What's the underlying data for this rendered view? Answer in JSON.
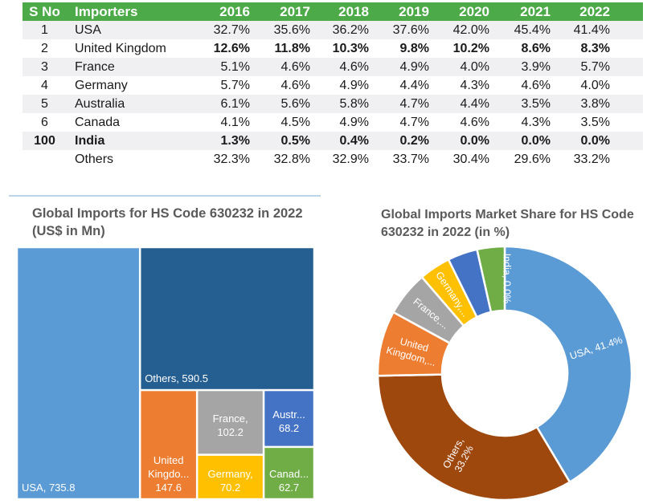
{
  "table": {
    "headers": [
      "S No",
      "Importers",
      "2016",
      "2017",
      "2018",
      "2019",
      "2020",
      "2021",
      "2022"
    ],
    "rows": [
      {
        "sno": "1",
        "name": "USA",
        "values": [
          "32.7%",
          "35.6%",
          "36.2%",
          "37.6%",
          "42.0%",
          "45.4%",
          "41.4%"
        ],
        "bold": false
      },
      {
        "sno": "2",
        "name": "United Kingdom",
        "values": [
          "12.6%",
          "11.8%",
          "10.3%",
          "9.8%",
          "10.2%",
          "8.6%",
          "8.3%"
        ],
        "bold": "values"
      },
      {
        "sno": "3",
        "name": "France",
        "values": [
          "5.1%",
          "4.6%",
          "4.6%",
          "4.9%",
          "4.0%",
          "3.9%",
          "5.7%"
        ],
        "bold": false
      },
      {
        "sno": "4",
        "name": "Germany",
        "values": [
          "5.7%",
          "4.6%",
          "4.9%",
          "4.4%",
          "4.3%",
          "4.6%",
          "4.0%"
        ],
        "bold": false
      },
      {
        "sno": "5",
        "name": "Australia",
        "values": [
          "6.1%",
          "5.6%",
          "5.8%",
          "4.7%",
          "4.4%",
          "3.5%",
          "3.8%"
        ],
        "bold": false
      },
      {
        "sno": "6",
        "name": "Canada",
        "values": [
          "4.1%",
          "4.5%",
          "4.9%",
          "4.7%",
          "4.6%",
          "4.3%",
          "3.5%"
        ],
        "bold": false
      },
      {
        "sno": "100",
        "name": "India",
        "values": [
          "1.3%",
          "0.5%",
          "0.4%",
          "0.2%",
          "0.0%",
          "0.0%",
          "0.0%"
        ],
        "bold": "all"
      },
      {
        "sno": "",
        "name": "Others",
        "values": [
          "32.3%",
          "32.8%",
          "32.9%",
          "33.7%",
          "30.4%",
          "29.6%",
          "33.2%"
        ],
        "bold": false
      }
    ],
    "header_color": "#4caa49"
  },
  "chart_data": [
    {
      "type": "treemap",
      "title": "Global Imports for HS Code 630232 in 2022 (US$ in Mn)",
      "items": [
        {
          "name": "USA",
          "value": 735.8,
          "label_lines": [
            "USA, 735.8"
          ],
          "color": "#5b9bd5"
        },
        {
          "name": "Others",
          "value": 590.5,
          "label_lines": [
            "Others, 590.5"
          ],
          "color": "#255e91"
        },
        {
          "name": "United Kingdom",
          "value": 147.6,
          "label_lines": [
            "United",
            "Kingdo...",
            "147.6"
          ],
          "color": "#ed7d31"
        },
        {
          "name": "France",
          "value": 102.2,
          "label_lines": [
            "France,",
            "102.2"
          ],
          "color": "#a5a5a5"
        },
        {
          "name": "Germany",
          "value": 70.2,
          "label_lines": [
            "Germany,",
            "70.2"
          ],
          "color": "#ffc000"
        },
        {
          "name": "Australia",
          "value": 68.2,
          "label_lines": [
            "Austr...",
            "68.2"
          ],
          "color": "#4472c4"
        },
        {
          "name": "Canada",
          "value": 62.7,
          "label_lines": [
            "Canad...",
            "62.7"
          ],
          "color": "#70ad47"
        }
      ]
    },
    {
      "type": "pie",
      "donut": true,
      "title": "Global Imports Market Share for HS Code 630232 in 2022 (in %)",
      "slices": [
        {
          "name": "USA",
          "value": 41.4,
          "label": "USA, 41.4%",
          "color": "#5b9bd5"
        },
        {
          "name": "Others",
          "value": 33.2,
          "label_lines": [
            "Others,",
            "33.2%"
          ],
          "color": "#9e480e"
        },
        {
          "name": "United Kingdom",
          "value": 8.3,
          "label_lines": [
            "United",
            "Kingdom,..."
          ],
          "color": "#ed7d31"
        },
        {
          "name": "France",
          "value": 5.7,
          "label": "France,...",
          "color": "#a5a5a5"
        },
        {
          "name": "Germany",
          "value": 4.0,
          "label": "Germany,...",
          "color": "#ffc000"
        },
        {
          "name": "Australia",
          "value": 3.8,
          "label": "",
          "color": "#4472c4"
        },
        {
          "name": "Canada",
          "value": 3.5,
          "label": "",
          "color": "#70ad47"
        },
        {
          "name": "India",
          "value": 0.0,
          "label": "India, 0.0%",
          "color": "#70ad47"
        }
      ]
    }
  ]
}
